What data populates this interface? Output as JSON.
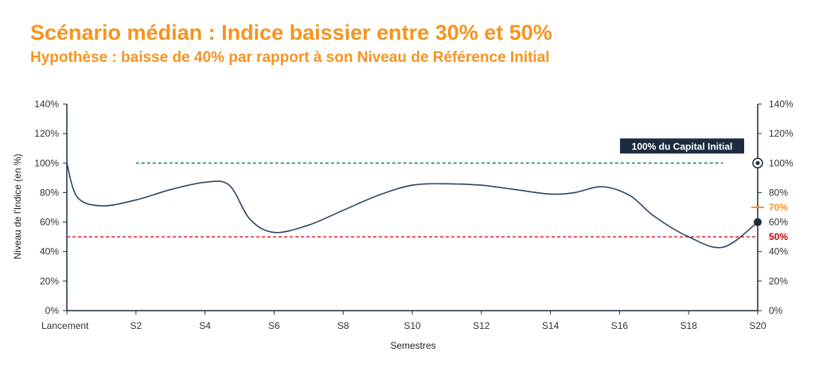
{
  "header": {
    "title": "Scénario médian : Indice baissier entre 30% et 50%",
    "subtitle": "Hypothèse : baisse de 40% par rapport à son Niveau de Référence Initial"
  },
  "chart_data": {
    "type": "line",
    "xlabel": "Semestres",
    "ylabel": "Niveau de l'Indice (en %)",
    "ylim": [
      0,
      140
    ],
    "y_ticks": [
      "0%",
      "20%",
      "40%",
      "60%",
      "80%",
      "100%",
      "120%",
      "140%"
    ],
    "x_range": [
      0,
      20
    ],
    "x_ticks": [
      {
        "x": 0,
        "label": "Lancement"
      },
      {
        "x": 2,
        "label": "S2"
      },
      {
        "x": 4,
        "label": "S4"
      },
      {
        "x": 6,
        "label": "S6"
      },
      {
        "x": 8,
        "label": "S8"
      },
      {
        "x": 10,
        "label": "S10"
      },
      {
        "x": 12,
        "label": "S12"
      },
      {
        "x": 14,
        "label": "S14"
      },
      {
        "x": 16,
        "label": "S16"
      },
      {
        "x": 18,
        "label": "S18"
      },
      {
        "x": 20,
        "label": "S20"
      }
    ],
    "series": [
      {
        "x": [
          0,
          0.3,
          1,
          2,
          3,
          4,
          4.7,
          5.3,
          6,
          7,
          8,
          9,
          10,
          11,
          12,
          13,
          14,
          14.7,
          15.5,
          16.3,
          17,
          18,
          19,
          20
        ],
        "y": [
          100,
          77,
          71,
          75,
          82,
          87,
          85,
          62,
          53,
          58,
          68,
          78,
          85,
          86,
          85,
          82,
          79,
          80,
          84,
          78,
          64,
          50,
          43,
          60
        ]
      }
    ],
    "reference_lines": [
      {
        "value": 100,
        "x_start": 2,
        "x_end": 19,
        "color": "#1a8a5a",
        "style": "dashed"
      },
      {
        "value": 50,
        "x_start": 0,
        "x_end": 20,
        "color": "#e0202a",
        "style": "dashed"
      }
    ],
    "annotations": {
      "capital_label": "100% du Capital Initial",
      "capital_value": 100,
      "final_value": 60,
      "coupon_threshold": {
        "value": 70,
        "label": "70%",
        "color": "#f7931e"
      },
      "barrier": {
        "value": 50,
        "label": "50%",
        "color": "#c00000"
      }
    },
    "colors": {
      "line": "#2e4563",
      "axis": "#1c2b40",
      "grid": "none"
    },
    "grid": false
  }
}
